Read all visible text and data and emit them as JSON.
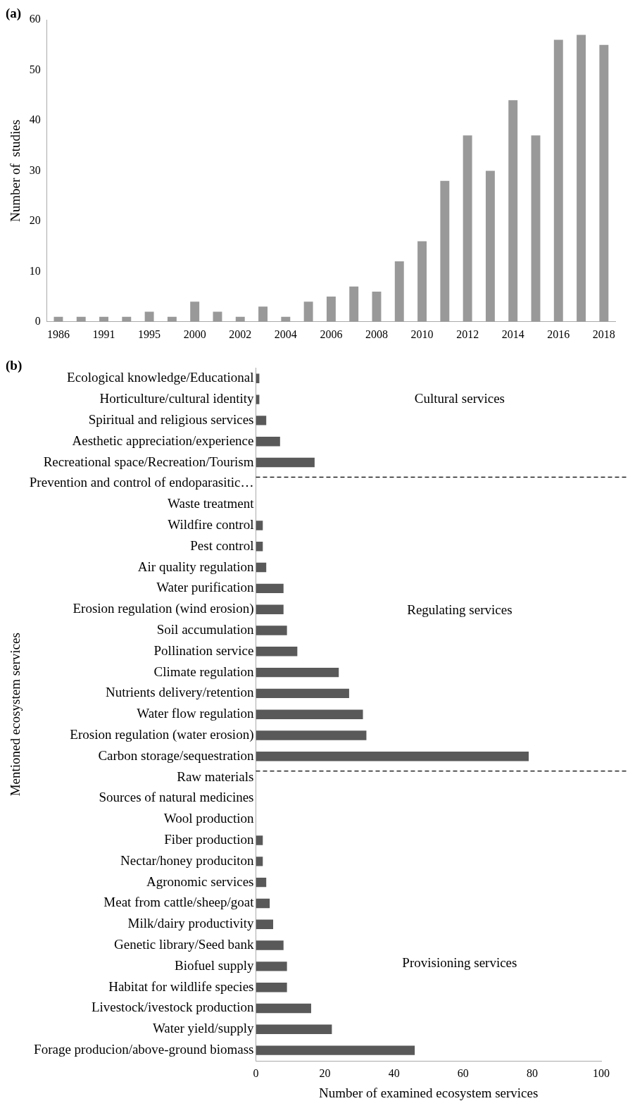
{
  "chart_data": [
    {
      "type": "bar",
      "annotations": [
        "(a)"
      ],
      "ylabel": "Number of  studies",
      "categories": [
        "1986",
        null,
        "1991",
        null,
        "1995",
        null,
        "2000",
        null,
        "2002",
        null,
        "2004",
        null,
        "2006",
        null,
        "2008",
        null,
        "2010",
        null,
        "2012",
        null,
        "2014",
        null,
        "2016",
        null,
        "2018"
      ],
      "values": [
        1,
        1,
        1,
        1,
        2,
        1,
        4,
        2,
        1,
        3,
        1,
        4,
        5,
        7,
        6,
        12,
        16,
        28,
        37,
        30,
        44,
        37,
        56,
        57,
        55
      ],
      "color": "#999999",
      "ylim": [
        0,
        60
      ],
      "yticks": [
        0,
        10,
        20,
        30,
        40,
        50,
        60
      ],
      "grid": false,
      "legend": false
    },
    {
      "type": "bar",
      "orientation": "horizontal",
      "annotations": [
        "(b)",
        "Cultural services",
        "Regulating services",
        "Provisioning services"
      ],
      "xlabel": "Number of examined ecosystem services",
      "ylabel": "Mentioned ecosystem services",
      "categories": [
        "Ecological knowledge/Educational",
        "Horticulture/cultural identity",
        "Spiritual and religious services",
        "Aesthetic appreciation/experience",
        "Recreational space/Recreation/Tourism",
        "Prevention and control of endoparasitic…",
        "Waste treatment",
        "Wildfire control",
        "Pest control",
        "Air quality regulation",
        "Water purification",
        "Erosion regulation (wind erosion)",
        "Soil accumulation",
        "Pollination service",
        "Climate regulation",
        "Nutrients delivery/retention",
        "Water flow regulation",
        "Erosion regulation (water erosion)",
        "Carbon storage/sequestration",
        "Raw materials",
        "Sources of natural medicines",
        "Wool production",
        "Fiber production",
        "Nectar/honey produciton",
        "Agronomic services",
        "Meat from cattle/sheep/goat",
        "Milk/dairy productivity",
        "Genetic library/Seed bank",
        "Biofuel supply",
        "Habitat for wildlife species",
        "Livestock/ivestock production",
        "Water yield/supply",
        "Forage producion/above-ground biomass"
      ],
      "values": [
        1,
        1,
        3,
        7,
        17,
        0,
        0,
        2,
        2,
        3,
        8,
        8,
        9,
        12,
        24,
        27,
        31,
        32,
        79,
        0,
        0,
        0,
        2,
        2,
        3,
        4,
        5,
        8,
        9,
        9,
        16,
        22,
        46
      ],
      "color": "#595959",
      "xlim": [
        0,
        100
      ],
      "xticks": [
        0,
        20,
        40,
        60,
        80,
        100
      ],
      "grid": false,
      "legend": false,
      "ref_lines": [
        {
          "axis": "y",
          "value": "Prevention and control of endoparasitic…",
          "line_style": "dashed"
        },
        {
          "axis": "y",
          "value": "Raw materials",
          "line_style": "dashed"
        }
      ]
    }
  ]
}
